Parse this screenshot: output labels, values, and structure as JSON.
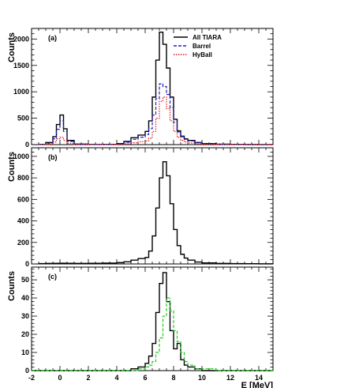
{
  "figure": {
    "xlabel": "E [MeV]",
    "ylabel": "Counts",
    "xlim": [
      -2,
      15
    ],
    "x_ticks": [
      -2,
      0,
      2,
      4,
      6,
      8,
      10,
      12,
      14
    ],
    "colors": {
      "all": "#000000",
      "barrel": "#1f1fbf",
      "hyball": "#e31a1c",
      "green": "#22cc22"
    }
  },
  "chart_data": [
    {
      "type": "line",
      "panel_label": "(a)",
      "xlabel": "",
      "ylabel": "Counts",
      "xlim": [
        -2,
        15
      ],
      "ylim": [
        0,
        2200
      ],
      "y_ticks": [
        0,
        500,
        1000,
        1500,
        2000
      ],
      "legend_position": "top-right",
      "x": [
        -1.5,
        -1,
        -0.5,
        -0.25,
        0,
        0.25,
        0.5,
        1,
        2,
        3,
        4,
        4.5,
        5,
        5.5,
        6,
        6.25,
        6.5,
        6.75,
        7,
        7.25,
        7.5,
        7.75,
        8,
        8.25,
        8.5,
        8.75,
        9,
        9.5,
        10,
        11,
        12,
        13,
        14,
        15
      ],
      "series": [
        {
          "name": "All TIARA",
          "style": "solid",
          "color": "#000000",
          "values": [
            5,
            40,
            150,
            380,
            560,
            300,
            80,
            10,
            3,
            5,
            20,
            60,
            130,
            180,
            250,
            450,
            900,
            1600,
            2130,
            1900,
            1450,
            900,
            480,
            260,
            160,
            110,
            80,
            40,
            20,
            8,
            4,
            2,
            1,
            0
          ]
        },
        {
          "name": "Barrel",
          "style": "dashed",
          "color": "#1f1fbf",
          "values": [
            3,
            25,
            110,
            290,
            450,
            250,
            60,
            8,
            2,
            4,
            15,
            45,
            100,
            140,
            190,
            300,
            560,
            870,
            1150,
            1100,
            950,
            700,
            420,
            240,
            150,
            100,
            70,
            35,
            18,
            7,
            3,
            2,
            1,
            0
          ]
        },
        {
          "name": "HyBall",
          "style": "dotted",
          "color": "#e31a1c",
          "values": [
            1,
            10,
            50,
            110,
            140,
            80,
            20,
            3,
            1,
            1,
            5,
            15,
            35,
            55,
            70,
            120,
            250,
            500,
            820,
            900,
            680,
            450,
            250,
            140,
            80,
            50,
            30,
            15,
            8,
            3,
            1,
            1,
            0,
            0
          ]
        }
      ]
    },
    {
      "type": "line",
      "panel_label": "(b)",
      "xlabel": "",
      "ylabel": "Counts",
      "xlim": [
        -2,
        15
      ],
      "ylim": [
        0,
        1080
      ],
      "y_ticks": [
        0,
        200,
        400,
        600,
        800,
        1000
      ],
      "x": [
        -1.5,
        -1,
        -0.5,
        0,
        0.5,
        1,
        2,
        3,
        4,
        4.5,
        5,
        5.5,
        6,
        6.25,
        6.5,
        6.75,
        7,
        7.25,
        7.5,
        7.75,
        8,
        8.25,
        8.5,
        8.75,
        9,
        9.5,
        10,
        11,
        12,
        13,
        14,
        15
      ],
      "series": [
        {
          "name": "",
          "style": "solid",
          "color": "#000000",
          "values": [
            3,
            5,
            6,
            7,
            6,
            5,
            6,
            8,
            12,
            20,
            35,
            50,
            60,
            120,
            260,
            520,
            800,
            950,
            820,
            560,
            320,
            170,
            90,
            55,
            35,
            18,
            10,
            5,
            3,
            2,
            1,
            0
          ]
        }
      ]
    },
    {
      "type": "line",
      "panel_label": "(c)",
      "xlabel": "E [MeV]",
      "ylabel": "Counts",
      "xlim": [
        -2,
        15
      ],
      "ylim": [
        0,
        57
      ],
      "y_ticks": [
        0,
        10,
        20,
        30,
        40,
        50
      ],
      "x": [
        -2,
        -1,
        0,
        1,
        2,
        3,
        4,
        5,
        5.5,
        6,
        6.25,
        6.5,
        6.75,
        7,
        7.25,
        7.5,
        7.75,
        8,
        8.25,
        8.5,
        8.75,
        9,
        9.5,
        10,
        11,
        12,
        13,
        14,
        15
      ],
      "series": [
        {
          "name": "",
          "style": "solid",
          "color": "#000000",
          "values": [
            0,
            0,
            0,
            0,
            0,
            0,
            0,
            1,
            2,
            4,
            8,
            15,
            32,
            48,
            54,
            38,
            22,
            12,
            15,
            6,
            3,
            2,
            1,
            0,
            0,
            0,
            0,
            0,
            0
          ]
        },
        {
          "name": "",
          "style": "dashed",
          "color": "#22cc22",
          "values": [
            0,
            0,
            0,
            0,
            0,
            0,
            0,
            0,
            1,
            2,
            3,
            5,
            10,
            18,
            30,
            40,
            33,
            22,
            16,
            10,
            5,
            3,
            1,
            1,
            0,
            0,
            0,
            0,
            0
          ]
        }
      ]
    }
  ]
}
